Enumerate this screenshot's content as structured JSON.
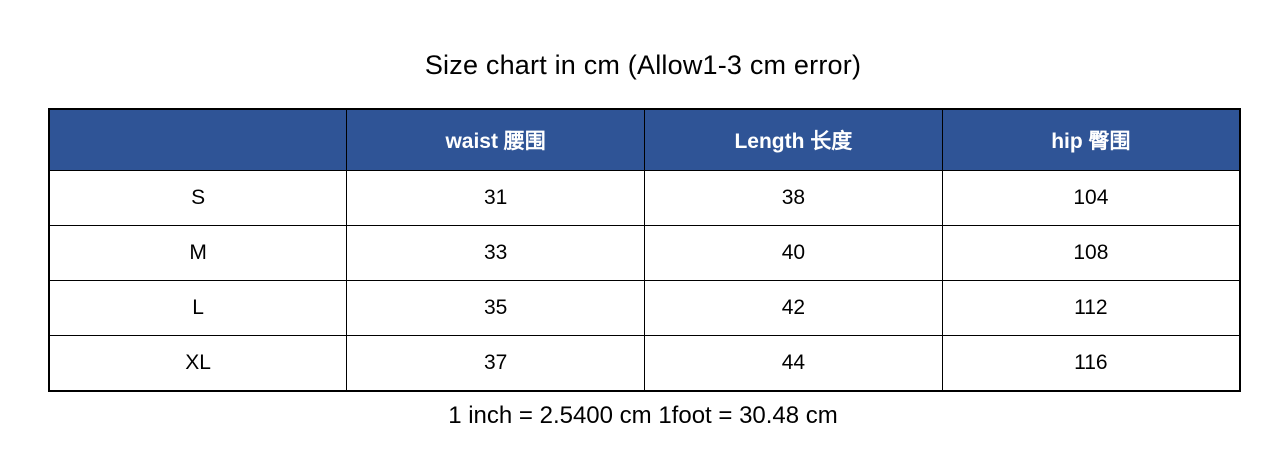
{
  "title": "Size chart in cm (Allow1-3 cm error)",
  "footnote": "1 inch = 2.5400 cm 1foot = 30.48 cm",
  "colors": {
    "header_background": "#2F5496",
    "header_text": "#FFFFFF",
    "border": "#000000",
    "page_background": "#FFFFFF"
  },
  "table": {
    "headers": {
      "size": "",
      "waist": "waist 腰围",
      "length": "Length 长度",
      "hip": "hip 臀围"
    },
    "rows": [
      {
        "size": "S",
        "waist": "31",
        "length": "38",
        "hip": "104"
      },
      {
        "size": "M",
        "waist": "33",
        "length": "40",
        "hip": "108"
      },
      {
        "size": "L",
        "waist": "35",
        "length": "42",
        "hip": "112"
      },
      {
        "size": "XL",
        "waist": "37",
        "length": "44",
        "hip": "116"
      }
    ]
  }
}
